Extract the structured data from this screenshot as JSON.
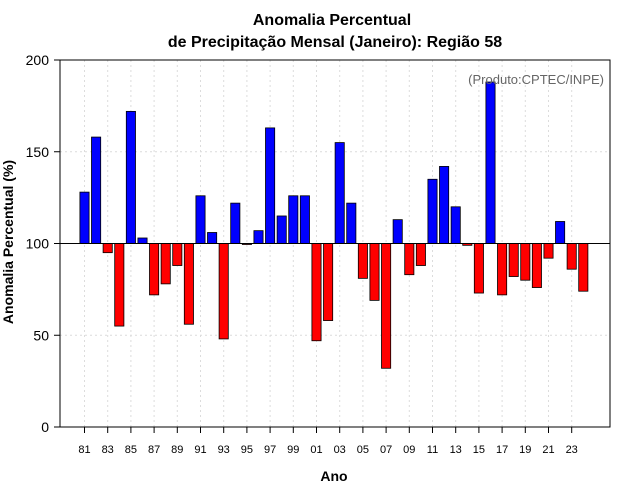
{
  "chart_data": {
    "type": "bar",
    "title_line1": "Anomalia Percentual",
    "title_line2": "de Precipitação Mensal (Janeiro): Região 58",
    "xlabel": "Ano",
    "ylabel": "Anomalia Percentual (%)",
    "credit": "(Produto:CPTEC/INPE)",
    "ylim": [
      0,
      200
    ],
    "yticks": [
      "0",
      "50",
      "100",
      "150",
      "200"
    ],
    "baseline": 100,
    "grid": true,
    "colors": {
      "above": "#0000ff",
      "below": "#ff0000",
      "outline": "#000000"
    },
    "x_tick_labels": [
      "81",
      "83",
      "85",
      "87",
      "89",
      "91",
      "93",
      "95",
      "97",
      "99",
      "01",
      "03",
      "05",
      "07",
      "09",
      "11",
      "13",
      "15",
      "17",
      "19",
      "21",
      "23"
    ],
    "categories": [
      "1981",
      "1982",
      "1983",
      "1984",
      "1985",
      "1986",
      "1987",
      "1988",
      "1989",
      "1990",
      "1991",
      "1992",
      "1993",
      "1994",
      "1995",
      "1996",
      "1997",
      "1998",
      "1999",
      "2000",
      "2001",
      "2002",
      "2003",
      "2004",
      "2005",
      "2006",
      "2007",
      "2008",
      "2009",
      "2010",
      "2011",
      "2012",
      "2013",
      "2014",
      "2015",
      "2016",
      "2017",
      "2018",
      "2019",
      "2020",
      "2021",
      "2022",
      "2023",
      "2024"
    ],
    "values": [
      128,
      158,
      95,
      55,
      172,
      103,
      72,
      78,
      88,
      56,
      126,
      106,
      48,
      122,
      99.5,
      107,
      163,
      115,
      126,
      126,
      47,
      58,
      155,
      122,
      81,
      69,
      32,
      113,
      83,
      88,
      135,
      142,
      120,
      99,
      73,
      188,
      72,
      82,
      80,
      76,
      92,
      112,
      86,
      74
    ]
  }
}
